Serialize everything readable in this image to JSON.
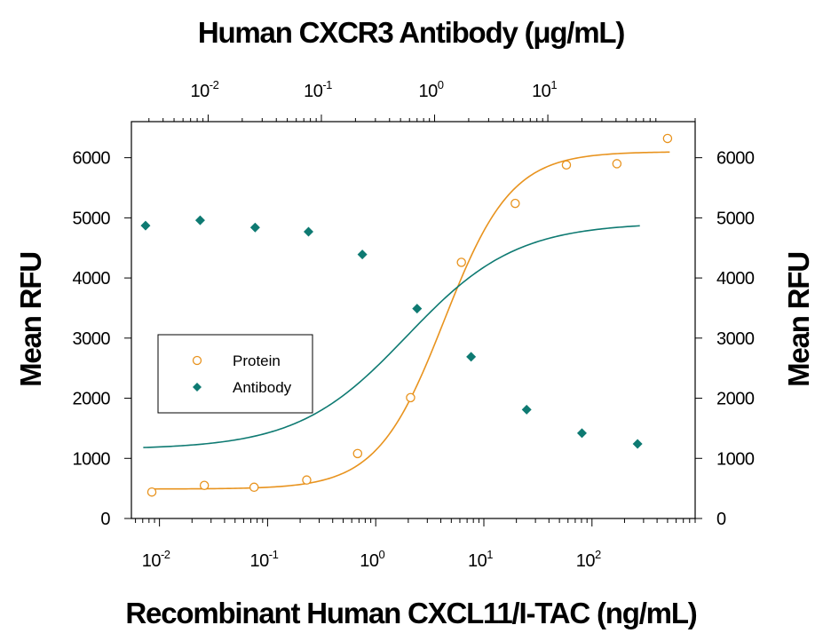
{
  "chart_data": {
    "type": "scatter",
    "title": "Human CXCR3 Antibody (μg/mL)",
    "xlabel": "Recombinant Human CXCL11/I-TAC (ng/mL)",
    "ylabel": "Mean RFU",
    "ylabel_right": "Mean RFU",
    "x_scale": "log",
    "xlim": [
      0.0055,
      900
    ],
    "ylim": [
      0,
      6600
    ],
    "x_ticks": [
      {
        "value": 0.01,
        "base": "10",
        "exp": "-2"
      },
      {
        "value": 0.1,
        "base": "10",
        "exp": "-1"
      },
      {
        "value": 1,
        "base": "10",
        "exp": "0"
      },
      {
        "value": 10,
        "base": "10",
        "exp": "1"
      },
      {
        "value": 100,
        "base": "10",
        "exp": "2"
      }
    ],
    "top_axis": {
      "label": "Human CXCR3 Antibody (μg/mL)",
      "scale": "log",
      "lim": [
        0.0021,
        200
      ],
      "ticks": [
        {
          "value": 0.01,
          "base": "10",
          "exp": "-2"
        },
        {
          "value": 0.1,
          "base": "10",
          "exp": "-1"
        },
        {
          "value": 1,
          "base": "10",
          "exp": "0"
        },
        {
          "value": 10,
          "base": "10",
          "exp": "1"
        }
      ]
    },
    "y_ticks": [
      "0",
      "1000",
      "2000",
      "3000",
      "4000",
      "5000",
      "6000"
    ],
    "grid": false,
    "legend_position": "middle-left",
    "series": [
      {
        "name": "Protein",
        "axis": "bottom",
        "marker": "open-circle",
        "color": "#E8931E",
        "x": [
          0.0085,
          0.026,
          0.075,
          0.23,
          0.68,
          2.1,
          6.2,
          19.5,
          58,
          170,
          500
        ],
        "y": [
          440,
          550,
          520,
          640,
          1080,
          2010,
          4260,
          5240,
          5880,
          5900,
          6320
        ],
        "fit": {
          "bottom": 490,
          "top": 6100,
          "ec50": 4.3,
          "hill": 1.4
        }
      },
      {
        "name": "Antibody",
        "axis": "top",
        "marker": "filled-diamond",
        "color": "#0E7A72",
        "x": [
          0.0028,
          0.0085,
          0.026,
          0.077,
          0.23,
          0.7,
          2.1,
          6.5,
          20,
          62
        ],
        "y": [
          4870,
          4960,
          4840,
          4770,
          4390,
          3490,
          2690,
          1810,
          1420,
          1240
        ],
        "fit": {
          "bottom": 1150,
          "top": 4920,
          "ec50": 0.57,
          "hill": 0.9
        }
      }
    ]
  }
}
